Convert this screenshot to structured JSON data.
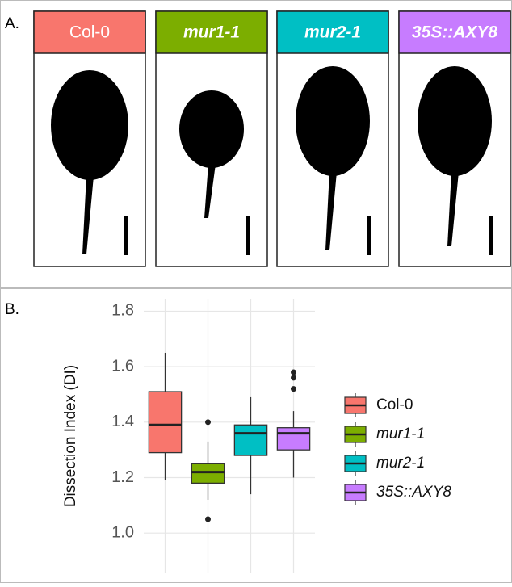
{
  "panel_a": {
    "label": "A.",
    "samples": [
      {
        "name": "Col-0",
        "color": "#F8766D",
        "italic": false
      },
      {
        "name": "mur1-1",
        "color": "#7CAE00",
        "italic": true
      },
      {
        "name": "mur2-1",
        "color": "#00BFC4",
        "italic": true
      },
      {
        "name": "35S::AXY8",
        "color": "#C77CFF",
        "italic": true
      }
    ]
  },
  "panel_b": {
    "label": "B."
  },
  "chart_data": {
    "type": "box",
    "y_label": "Dissection Index (DI)",
    "ylim": [
      0.855,
      1.845
    ],
    "yticks": [
      {
        "value": 1,
        "label": "1.0"
      },
      1.2,
      1.4,
      1.6,
      {
        "value": 1.8,
        "label": "1.8"
      }
    ],
    "grid": true,
    "series": [
      {
        "name": "Col-0",
        "color": "#F8766D",
        "italic": false,
        "whisker_low": 1.19,
        "q1": 1.29,
        "median": 1.39,
        "q3": 1.51,
        "whisker_high": 1.65,
        "outliers": []
      },
      {
        "name": "mur1-1",
        "color": "#7CAE00",
        "italic": true,
        "whisker_low": 1.12,
        "q1": 1.18,
        "median": 1.22,
        "q3": 1.25,
        "whisker_high": 1.33,
        "outliers": [
          1.4,
          1.05
        ]
      },
      {
        "name": "mur2-1",
        "color": "#00BFC4",
        "italic": true,
        "whisker_low": 1.14,
        "q1": 1.28,
        "median": 1.36,
        "q3": 1.39,
        "whisker_high": 1.49,
        "outliers": []
      },
      {
        "name": "35S::AXY8",
        "color": "#C77CFF",
        "italic": true,
        "whisker_low": 1.2,
        "q1": 1.3,
        "median": 1.36,
        "q3": 1.38,
        "whisker_high": 1.44,
        "outliers": [
          1.58,
          1.56,
          1.52
        ]
      }
    ]
  }
}
